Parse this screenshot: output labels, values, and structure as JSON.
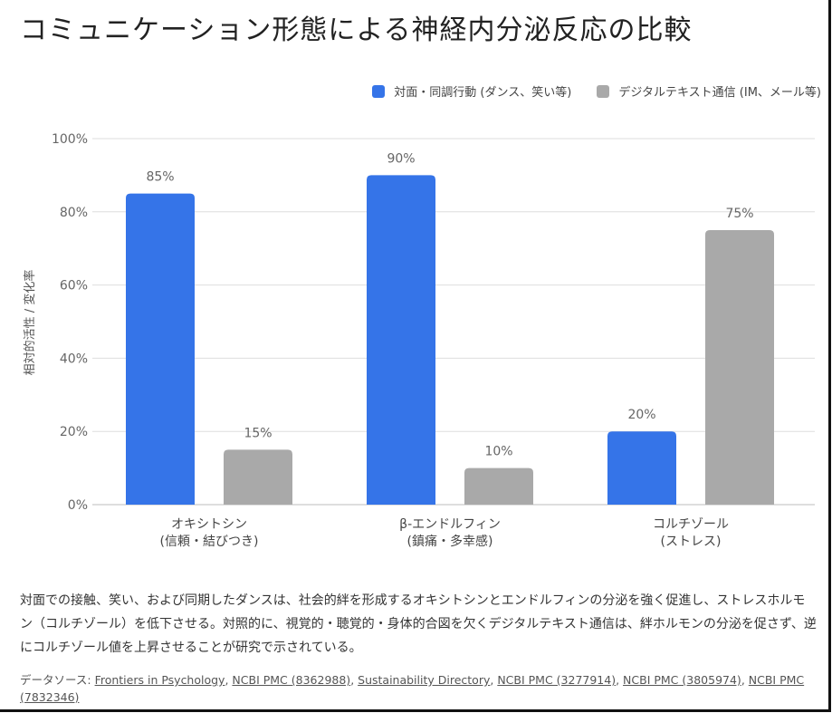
{
  "title": "コミュニケーション形態による神経内分泌反応の比較",
  "chart_data": {
    "type": "bar",
    "title": "コミュニケーション形態による神経内分泌反応の比較",
    "xlabel": "",
    "ylabel": "相対的活性 / 変化率",
    "ylim": [
      0,
      100
    ],
    "yticks": [
      "0%",
      "20%",
      "40%",
      "60%",
      "80%",
      "100%"
    ],
    "ytick_values": [
      0,
      20,
      40,
      60,
      80,
      100
    ],
    "grid": true,
    "legend_position": "top-right",
    "categories": [
      {
        "line1": "オキシトシン",
        "line2": "(信頼・結びつき)"
      },
      {
        "line1": "β-エンドルフィン",
        "line2": "(鎮痛・多幸感)"
      },
      {
        "line1": "コルチゾール",
        "line2": "(ストレス)"
      }
    ],
    "series": [
      {
        "name": "対面・同調行動 (ダンス、笑い等)",
        "color": "#3574e8",
        "values": [
          85,
          90,
          20
        ],
        "labels": [
          "85%",
          "90%",
          "20%"
        ]
      },
      {
        "name": "デジタルテキスト通信 (IM、メール等)",
        "color": "#a9a9a9",
        "values": [
          15,
          10,
          75
        ],
        "labels": [
          "15%",
          "10%",
          "75%"
        ]
      }
    ]
  },
  "description": "対面での接触、笑い、および同期したダンスは、社会的絆を形成するオキシトシンとエンドルフィンの分泌を強く促進し、ストレスホルモン（コルチゾール）を低下させる。対照的に、視覚的・聴覚的・身体的合図を欠くデジタルテキスト通信は、絆ホルモンの分泌を促さず、逆にコルチゾール値を上昇させることが研究で示されている。",
  "sources": {
    "prefix": "データソース: ",
    "links": [
      "Frontiers in Psychology",
      "NCBI PMC (8362988)",
      "Sustainability Directory",
      "NCBI PMC (3277914)",
      "NCBI PMC (3805974)",
      "NCBI PMC (7832346)"
    ],
    "separator": ", "
  }
}
